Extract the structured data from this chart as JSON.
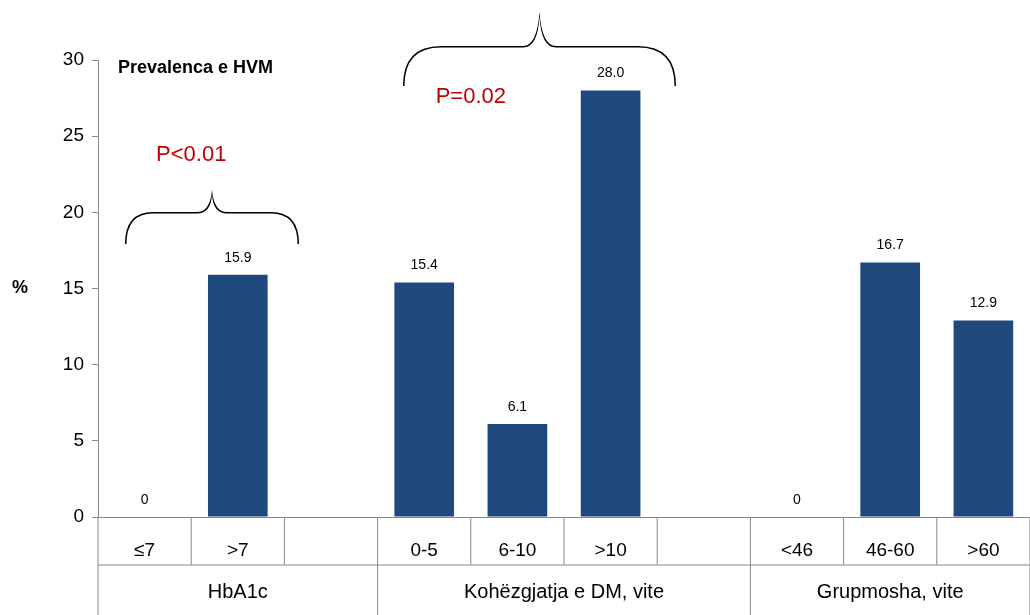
{
  "chart_data": {
    "type": "bar",
    "title": "Prevalenca e HVM",
    "ylabel": "%",
    "categories": [
      "≤7",
      ">7",
      null,
      "0-5",
      "6-10",
      ">10",
      null,
      "<46",
      "46-60",
      ">60"
    ],
    "values": [
      0,
      15.9,
      null,
      15.4,
      6.1,
      28.0,
      null,
      0,
      16.7,
      12.9
    ],
    "value_labels": [
      "0",
      "15.9",
      null,
      "15.4",
      "6.1",
      "28.0",
      null,
      "0",
      "16.7",
      "12.9"
    ],
    "color": "#1f497d",
    "ylim": [
      0,
      30
    ],
    "yticks": [
      0,
      5,
      10,
      15,
      20,
      25,
      30
    ],
    "grid": false,
    "legend": false,
    "annotations": [
      "P<0.01",
      "P=0.02",
      "HbA1c",
      "Kohëzgjatja e DM, vite",
      "Grupmosha, vite"
    ]
  }
}
